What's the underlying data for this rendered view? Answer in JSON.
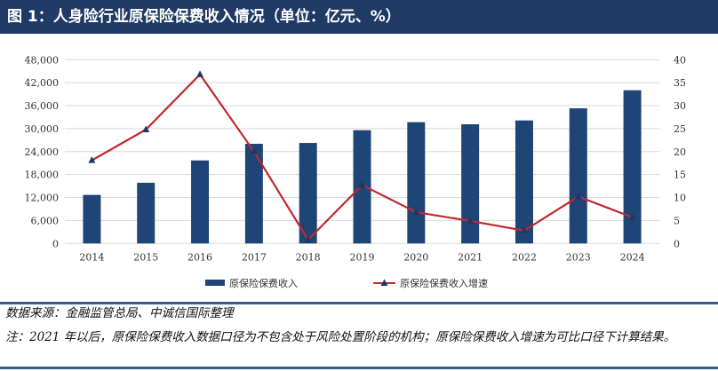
{
  "title": "图 1：人身险行业原保险保费收入情况（单位：亿元、%）",
  "chart_data": {
    "type": "bar+line",
    "categories": [
      "2014",
      "2015",
      "2016",
      "2017",
      "2018",
      "2019",
      "2020",
      "2021",
      "2022",
      "2023",
      "2024"
    ],
    "series": [
      {
        "name": "原保险保费收入",
        "type": "bar",
        "axis": "left",
        "color": "#1f4476",
        "values": [
          12690,
          15860,
          21690,
          26040,
          26260,
          29590,
          31680,
          31140,
          32140,
          35310,
          40030
        ]
      },
      {
        "name": "原保险保费收入增速",
        "type": "line",
        "axis": "right",
        "color": "#c0282d",
        "marker": "triangle",
        "marker_color": "#1f3864",
        "values": [
          18.1,
          24.8,
          36.8,
          20.0,
          0.8,
          12.7,
          6.8,
          4.9,
          2.8,
          10.2,
          5.7
        ]
      }
    ],
    "ylim_left": [
      0,
      48000
    ],
    "yticks_left": [
      "0",
      "6,000",
      "12,000",
      "18,000",
      "24,000",
      "30,000",
      "36,000",
      "42,000",
      "48,000"
    ],
    "ylim_right": [
      0,
      40
    ],
    "yticks_right": [
      "0",
      "5",
      "10",
      "15",
      "20",
      "25",
      "30",
      "35",
      "40"
    ],
    "grid": true,
    "legend": "bottom"
  },
  "source": "数据来源：金融监管总局、中诚信国际整理",
  "note": "注：2021 年以后，原保险保费收入数据口径为不包含处于风险处置阶段的机构；原保险保费收入增速为可比口径下计算结果。"
}
